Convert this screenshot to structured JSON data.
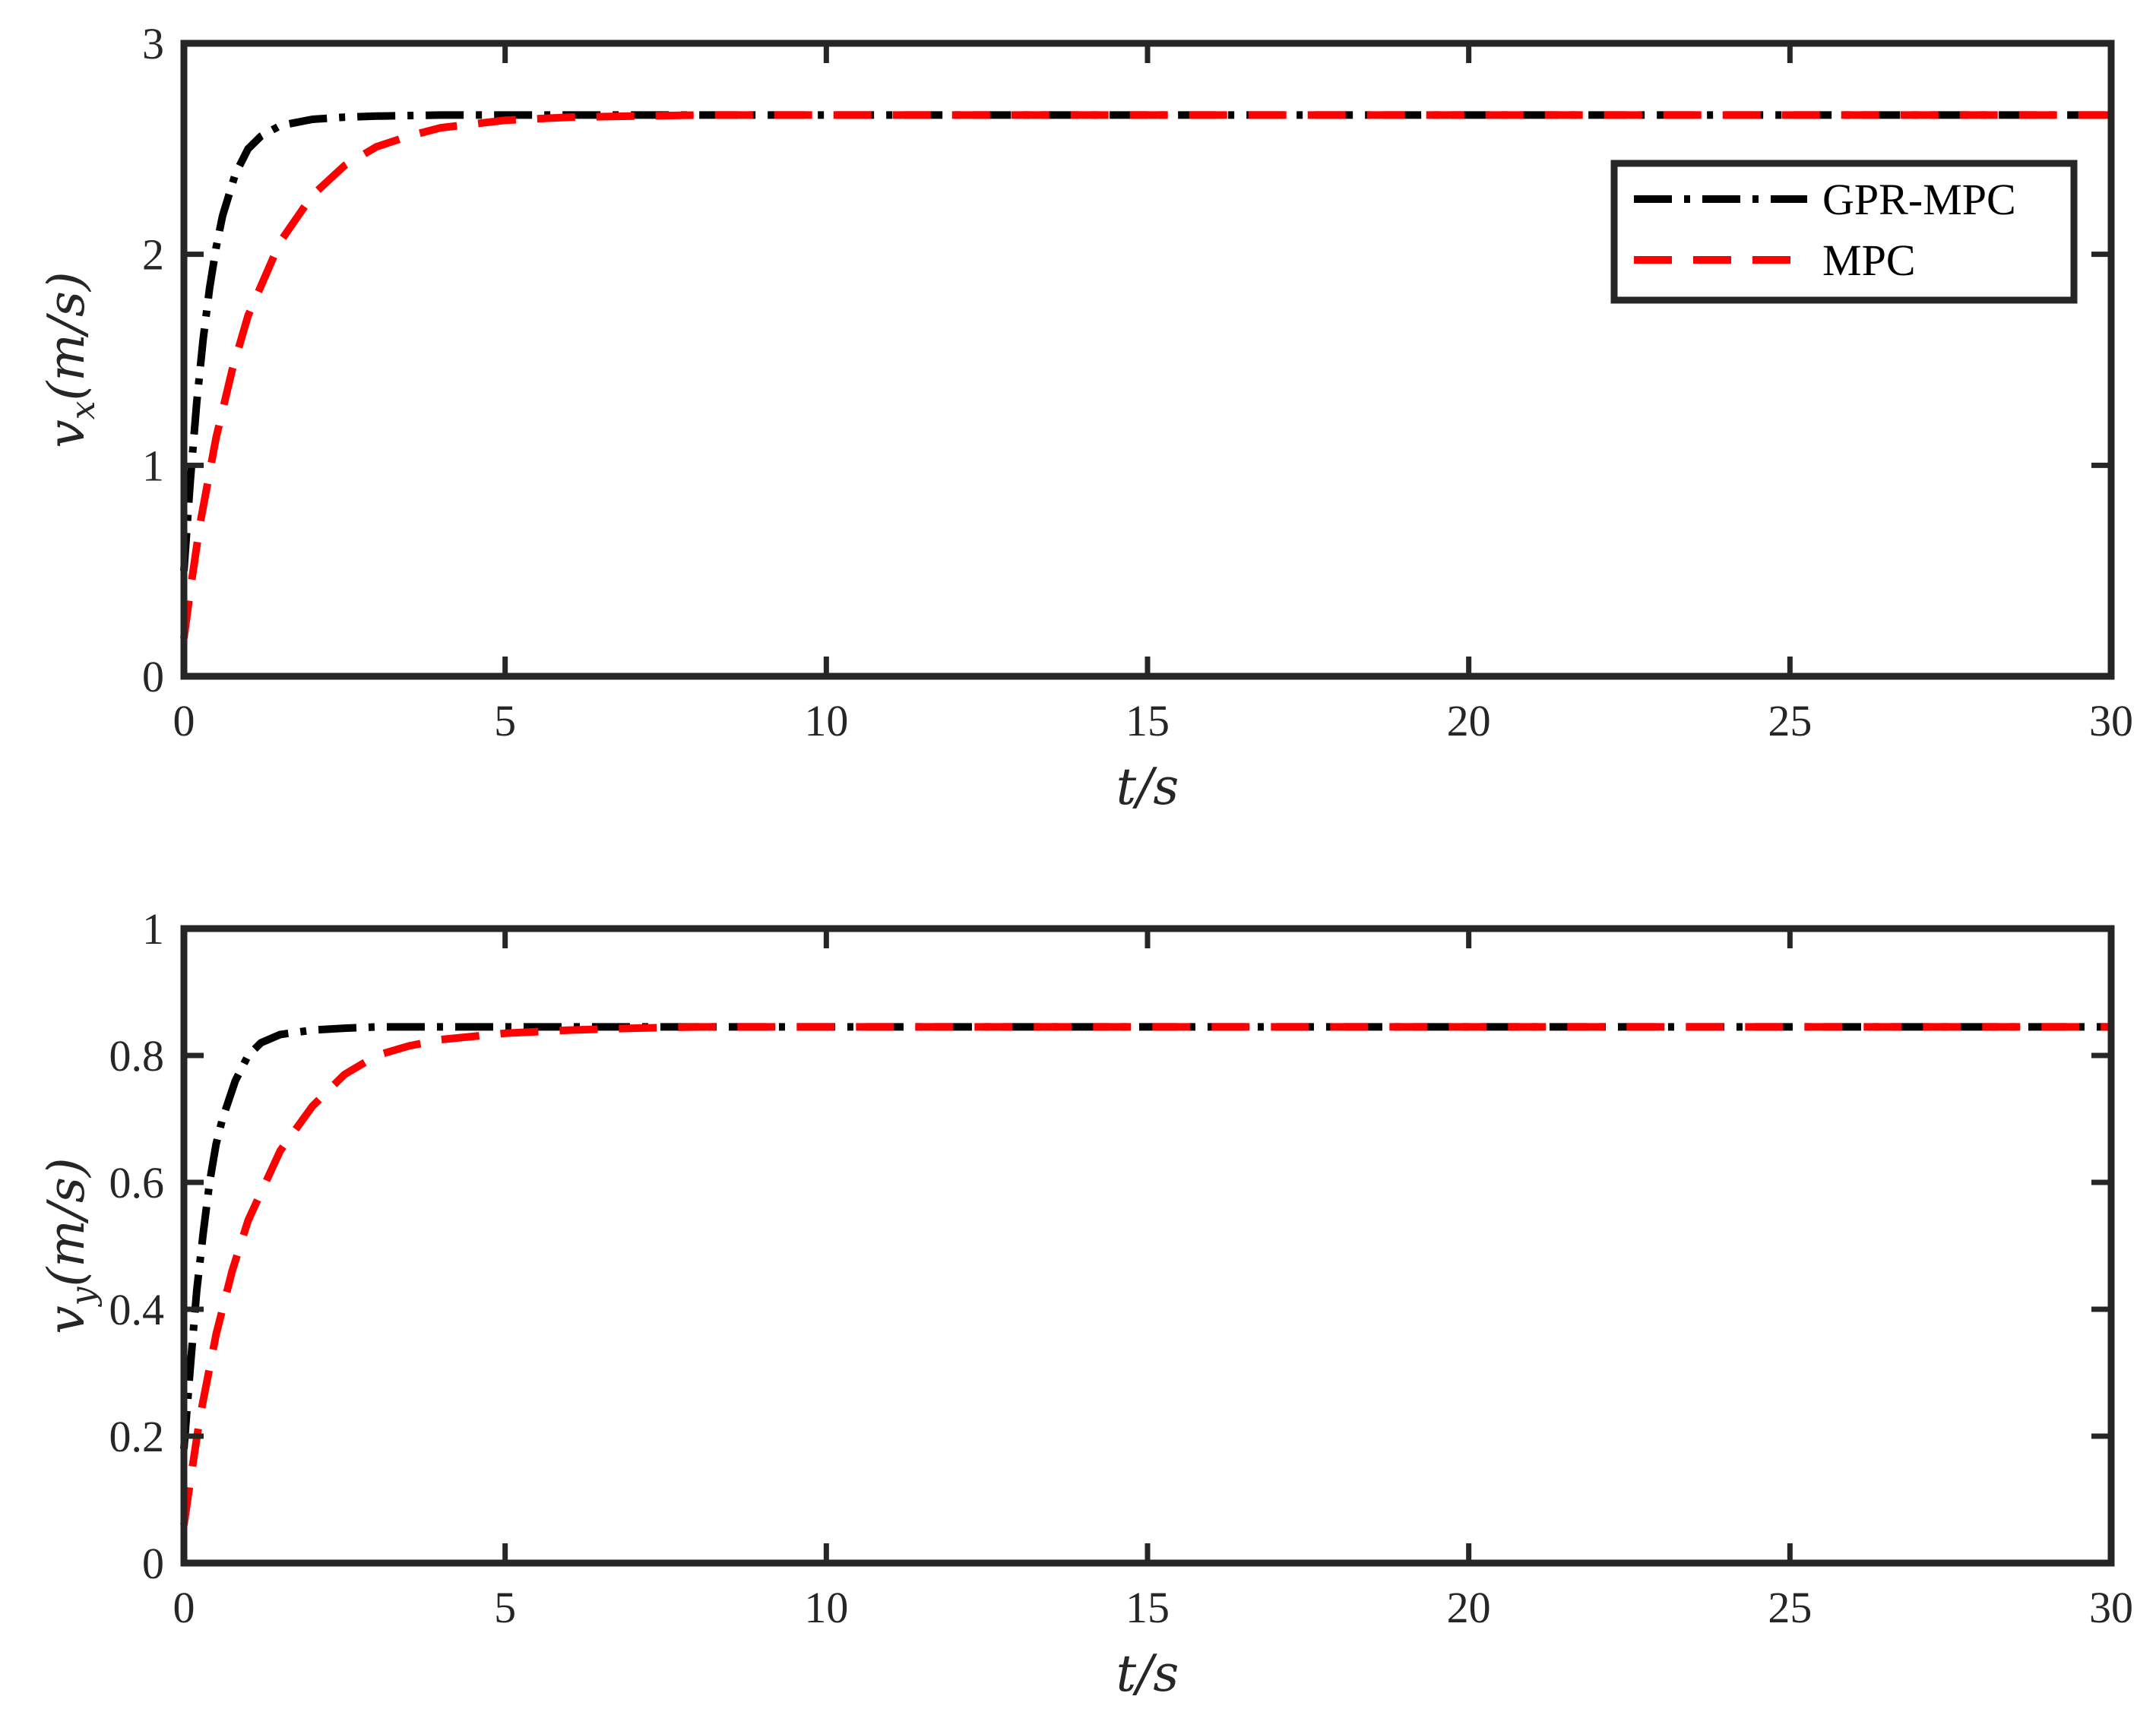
{
  "colors": {
    "axes": "#262626",
    "gpr_mpc": "#000000",
    "mpc": "#ff0000",
    "background": "#ffffff"
  },
  "legend": {
    "entries": [
      "GPR-MPC",
      "MPC"
    ]
  },
  "chart_data": [
    {
      "type": "line",
      "xlabel": "t/s",
      "ylabel_main": "v",
      "ylabel_sub": "x",
      "ylabel_rest": "(m/s)",
      "xlim": [
        0,
        30
      ],
      "ylim": [
        0,
        3
      ],
      "xticks": [
        "0",
        "5",
        "10",
        "15",
        "20",
        "25",
        "30"
      ],
      "yticks": [
        "0",
        "1",
        "2",
        "3"
      ],
      "legend": "top-right",
      "grid": false,
      "series": [
        {
          "name": "GPR-MPC",
          "style": "dash-dot",
          "x": [
            0,
            0.1,
            0.2,
            0.3,
            0.4,
            0.5,
            0.6,
            0.8,
            1.0,
            1.2,
            1.5,
            2.0,
            2.5,
            3.0,
            4.0,
            5.0,
            7.0,
            10.0,
            15.0,
            20.0,
            25.0,
            30.0
          ],
          "y": [
            0.5,
            0.93,
            1.3,
            1.6,
            1.84,
            2.03,
            2.18,
            2.38,
            2.5,
            2.56,
            2.61,
            2.64,
            2.65,
            2.655,
            2.66,
            2.66,
            2.66,
            2.66,
            2.66,
            2.66,
            2.66,
            2.66
          ]
        },
        {
          "name": "MPC",
          "style": "dashed",
          "x": [
            0,
            0.1,
            0.25,
            0.5,
            0.75,
            1.0,
            1.5,
            2.0,
            2.5,
            3.0,
            3.5,
            4.0,
            5.0,
            6.0,
            7.0,
            8.0,
            10.0,
            15.0,
            20.0,
            25.0,
            30.0
          ],
          "y": [
            0.18,
            0.41,
            0.72,
            1.13,
            1.45,
            1.71,
            2.06,
            2.28,
            2.42,
            2.51,
            2.56,
            2.6,
            2.635,
            2.65,
            2.655,
            2.66,
            2.66,
            2.66,
            2.66,
            2.66,
            2.66
          ]
        }
      ]
    },
    {
      "type": "line",
      "xlabel": "t/s",
      "ylabel_main": "v",
      "ylabel_sub": "y",
      "ylabel_rest": "(m/s)",
      "xlim": [
        0,
        30
      ],
      "ylim": [
        0,
        1
      ],
      "xticks": [
        "0",
        "5",
        "10",
        "15",
        "20",
        "25",
        "30"
      ],
      "yticks": [
        "0",
        "0.2",
        "0.4",
        "0.6",
        "0.8",
        "1"
      ],
      "grid": false,
      "series": [
        {
          "name": "GPR-MPC",
          "style": "dash-dot",
          "x": [
            0,
            0.1,
            0.2,
            0.3,
            0.4,
            0.5,
            0.6,
            0.8,
            1.0,
            1.2,
            1.5,
            2.0,
            2.5,
            3.0,
            4.0,
            5.0,
            7.0,
            10.0,
            15.0,
            20.0,
            25.0,
            30.0
          ],
          "y": [
            0.18,
            0.31,
            0.43,
            0.52,
            0.6,
            0.66,
            0.7,
            0.76,
            0.8,
            0.82,
            0.833,
            0.84,
            0.843,
            0.845,
            0.845,
            0.845,
            0.845,
            0.845,
            0.845,
            0.845,
            0.845,
            0.845
          ]
        },
        {
          "name": "MPC",
          "style": "dashed",
          "x": [
            0,
            0.1,
            0.25,
            0.5,
            0.75,
            1.0,
            1.5,
            2.0,
            2.5,
            3.0,
            3.5,
            4.0,
            5.0,
            6.0,
            7.0,
            8.0,
            10.0,
            15.0,
            20.0,
            25.0,
            30.0
          ],
          "y": [
            0.06,
            0.13,
            0.23,
            0.36,
            0.46,
            0.54,
            0.65,
            0.72,
            0.77,
            0.8,
            0.815,
            0.825,
            0.835,
            0.84,
            0.843,
            0.845,
            0.845,
            0.845,
            0.845,
            0.845,
            0.845
          ]
        }
      ]
    }
  ]
}
